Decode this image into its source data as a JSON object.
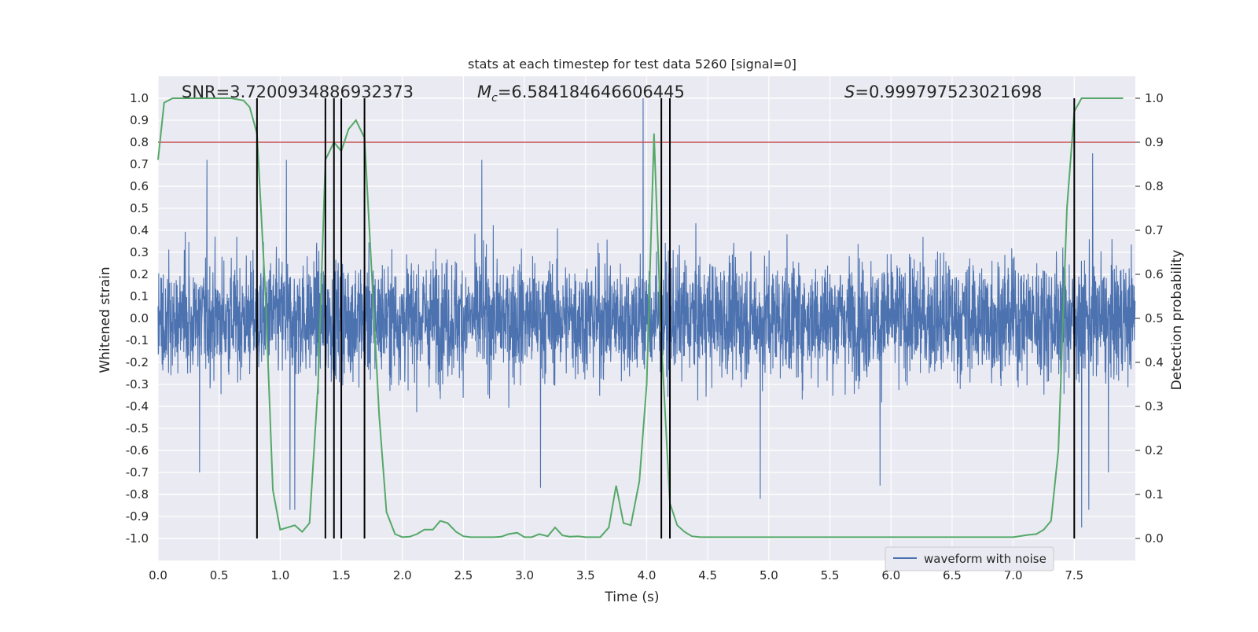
{
  "chart_data": {
    "type": "line",
    "title": "stats at each timestep for test data 5260 [signal=0]",
    "xlabel": "Time (s)",
    "ylabel": "Whitened strain",
    "y2label": "Detection probability",
    "xlim": [
      0.0,
      8.0
    ],
    "ylim": [
      -1.1,
      1.1
    ],
    "y2lim": [
      -0.05,
      1.05
    ],
    "xticks": [
      "0.0",
      "0.5",
      "1.0",
      "1.5",
      "2.0",
      "2.5",
      "3.0",
      "3.5",
      "4.0",
      "4.5",
      "5.0",
      "5.5",
      "6.0",
      "6.5",
      "7.0",
      "7.5"
    ],
    "xtick_values": [
      0,
      0.5,
      1,
      1.5,
      2,
      2.5,
      3,
      3.5,
      4,
      4.5,
      5,
      5.5,
      6,
      6.5,
      7,
      7.5
    ],
    "yticks": [
      "1.0",
      "0.9",
      "0.8",
      "0.7",
      "0.6",
      "0.5",
      "0.4",
      "0.3",
      "0.2",
      "0.1",
      "0.0",
      "-0.1",
      "-0.2",
      "-0.3",
      "-0.4",
      "-0.5",
      "-0.6",
      "-0.7",
      "-0.8",
      "-0.9",
      "-1.0"
    ],
    "ytick_values": [
      1.0,
      0.9,
      0.8,
      0.7,
      0.6,
      0.5,
      0.4,
      0.3,
      0.2,
      0.1,
      0.0,
      -0.1,
      -0.2,
      -0.3,
      -0.4,
      -0.5,
      -0.6,
      -0.7,
      -0.8,
      -0.9,
      -1.0
    ],
    "y2ticks": [
      "1.0",
      "0.9",
      "0.8",
      "0.7",
      "0.6",
      "0.5",
      "0.4",
      "0.3",
      "0.2",
      "0.1",
      "0.0"
    ],
    "y2tick_values": [
      1.0,
      0.9,
      0.8,
      0.7,
      0.6,
      0.5,
      0.4,
      0.3,
      0.2,
      0.1,
      0.0
    ],
    "annotations": {
      "snr": "SNR=3.7200934886932373",
      "mc_symbol": "M",
      "mc_sub": "c",
      "mc_value": "=6.584184646606445",
      "s_symbol": "S",
      "s_value": "=0.999797523021698"
    },
    "threshold": {
      "value": 0.9,
      "axis": "y2",
      "color": "#c44e52"
    },
    "detection_lines_x": [
      0.81,
      1.37,
      1.44,
      1.5,
      1.69,
      4.12,
      4.19,
      7.5
    ],
    "series": [
      {
        "name": "waveform with noise",
        "color": "#4c72b0",
        "axis": "y",
        "description": "whitened noise, typical amplitude ±0.4 with spikes to ±0.8",
        "spikes": [
          {
            "x": 3.97,
            "y": 1.0
          },
          {
            "x": 0.4,
            "y": 0.72
          },
          {
            "x": 1.05,
            "y": 0.72
          },
          {
            "x": 2.65,
            "y": 0.72
          },
          {
            "x": 7.65,
            "y": 0.75
          },
          {
            "x": 1.12,
            "y": -0.87
          },
          {
            "x": 1.08,
            "y": -0.87
          },
          {
            "x": 7.62,
            "y": -0.87
          },
          {
            "x": 7.56,
            "y": -0.95
          },
          {
            "x": 3.13,
            "y": -0.77
          },
          {
            "x": 5.91,
            "y": -0.76
          },
          {
            "x": 0.34,
            "y": -0.7
          },
          {
            "x": 4.93,
            "y": -0.82
          },
          {
            "x": 7.78,
            "y": -0.7
          }
        ]
      },
      {
        "name": "detection probability",
        "color": "#55a868",
        "axis": "y2",
        "x": [
          0.0,
          0.05,
          0.12,
          0.2,
          0.3,
          0.4,
          0.5,
          0.6,
          0.7,
          0.75,
          0.81,
          0.88,
          0.94,
          1.0,
          1.06,
          1.12,
          1.18,
          1.24,
          1.31,
          1.37,
          1.44,
          1.5,
          1.56,
          1.62,
          1.69,
          1.75,
          1.81,
          1.87,
          1.94,
          2.0,
          2.06,
          2.12,
          2.18,
          2.25,
          2.31,
          2.37,
          2.44,
          2.5,
          2.56,
          2.62,
          2.69,
          2.75,
          2.81,
          2.87,
          2.94,
          3.0,
          3.06,
          3.12,
          3.19,
          3.25,
          3.31,
          3.37,
          3.44,
          3.5,
          3.56,
          3.62,
          3.69,
          3.75,
          3.81,
          3.87,
          3.94,
          4.0,
          4.06,
          4.12,
          4.19,
          4.25,
          4.31,
          4.37,
          4.44,
          4.5,
          4.56,
          4.62,
          4.69,
          4.75,
          4.81,
          4.87,
          4.94,
          5.0,
          5.5,
          6.0,
          6.12,
          6.25,
          6.37,
          6.5,
          6.62,
          6.75,
          6.87,
          7.0,
          7.12,
          7.19,
          7.25,
          7.31,
          7.37,
          7.44,
          7.5,
          7.56,
          7.62,
          7.7,
          7.8,
          7.9
        ],
        "values": [
          0.86,
          0.99,
          1.0,
          1.0,
          1.0,
          1.0,
          1.0,
          1.0,
          0.995,
          0.98,
          0.92,
          0.55,
          0.11,
          0.02,
          0.025,
          0.03,
          0.015,
          0.035,
          0.35,
          0.86,
          0.9,
          0.88,
          0.93,
          0.95,
          0.91,
          0.6,
          0.28,
          0.06,
          0.01,
          0.003,
          0.004,
          0.01,
          0.02,
          0.02,
          0.04,
          0.035,
          0.015,
          0.005,
          0.003,
          0.003,
          0.003,
          0.003,
          0.004,
          0.01,
          0.013,
          0.003,
          0.003,
          0.01,
          0.005,
          0.025,
          0.007,
          0.004,
          0.005,
          0.003,
          0.003,
          0.003,
          0.025,
          0.12,
          0.035,
          0.03,
          0.13,
          0.35,
          0.92,
          0.45,
          0.08,
          0.03,
          0.015,
          0.005,
          0.003,
          0.003,
          0.003,
          0.003,
          0.003,
          0.003,
          0.003,
          0.003,
          0.003,
          0.003,
          0.003,
          0.003,
          0.003,
          0.003,
          0.003,
          0.003,
          0.003,
          0.003,
          0.003,
          0.003,
          0.008,
          0.01,
          0.02,
          0.04,
          0.2,
          0.75,
          0.97,
          1.0,
          1.0,
          1.0,
          1.0,
          1.0
        ]
      }
    ],
    "legend": {
      "entries": [
        "waveform with noise"
      ],
      "location": "lower-right"
    }
  },
  "colors": {
    "plot_bg": "#eaeaf2",
    "grid": "#ffffff",
    "strain": "#4c72b0",
    "prob": "#55a868",
    "threshold": "#c44e52",
    "vlines": "#000000"
  }
}
